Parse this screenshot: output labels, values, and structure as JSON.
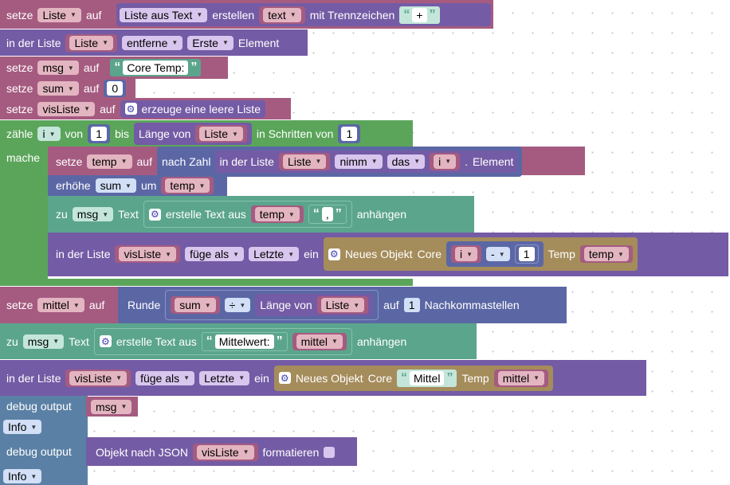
{
  "workspace": {
    "setze": "setze",
    "auf": "auf",
    "in_der_liste": "in der Liste",
    "zaehle": "zähle",
    "von": "von",
    "bis": "bis",
    "mache": "mache",
    "erhoehe": "erhöhe",
    "um": "um",
    "zu": "zu",
    "text": "Text",
    "anhaengen": "anhängen",
    "fuege_als": "füge als",
    "ein": "ein",
    "neues_objekt": "Neues Objekt",
    "core": "Core",
    "temp": "Temp",
    "debug_output": "debug output",
    "info": "Info",
    "erstelle_text_aus": "erstelle Text aus",
    "laenge_von": "Länge von",
    "quote_open": "“",
    "quote_close": "”"
  },
  "vars": {
    "liste": "Liste",
    "msg": "msg",
    "sum": "sum",
    "visliste": "visListe",
    "i": "i",
    "temp": "temp",
    "mittel": "mittel"
  },
  "line1": {
    "liste_aus_text": "Liste aus Text",
    "erstellen": "erstellen",
    "mode": "text",
    "mit_trennzeichen": "mit Trennzeichen",
    "sep": "+"
  },
  "line2": {
    "action": "entferne",
    "which": "Erste",
    "element": "Element"
  },
  "line3": {
    "literal": "Core Temp:"
  },
  "line4": {
    "value": "0"
  },
  "line5": {
    "label": "erzeuge eine leere Liste"
  },
  "loop": {
    "from": "1",
    "in_schritten_von": "in Schritten von",
    "step": "1"
  },
  "inner1": {
    "nach_zahl": "nach Zahl",
    "nimm": "nimm",
    "das": "das",
    "dot": ".",
    "element": "Element"
  },
  "inner3": {
    "sep": ","
  },
  "inner4": {
    "position": "Letzte",
    "minus": "-",
    "offset": "1"
  },
  "mittel_line": {
    "runde": "Runde",
    "op": "÷",
    "auf": "auf",
    "places": "1",
    "nachkommastellen": "Nachkommastellen"
  },
  "msg_line": {
    "literal": "Mittelwert:"
  },
  "vis_line": {
    "position": "Letzte",
    "literal": "Mittel"
  },
  "debug2": {
    "objekt_nach_json": "Objekt nach JSON",
    "formatieren": "formatieren"
  },
  "colors": {
    "variable": "#a55b80",
    "list": "#745ba5",
    "text": "#5ba58c",
    "math": "#5b67a5",
    "loop": "#5ba55b",
    "object": "#a58c5b",
    "debug": "#5b80a5"
  }
}
